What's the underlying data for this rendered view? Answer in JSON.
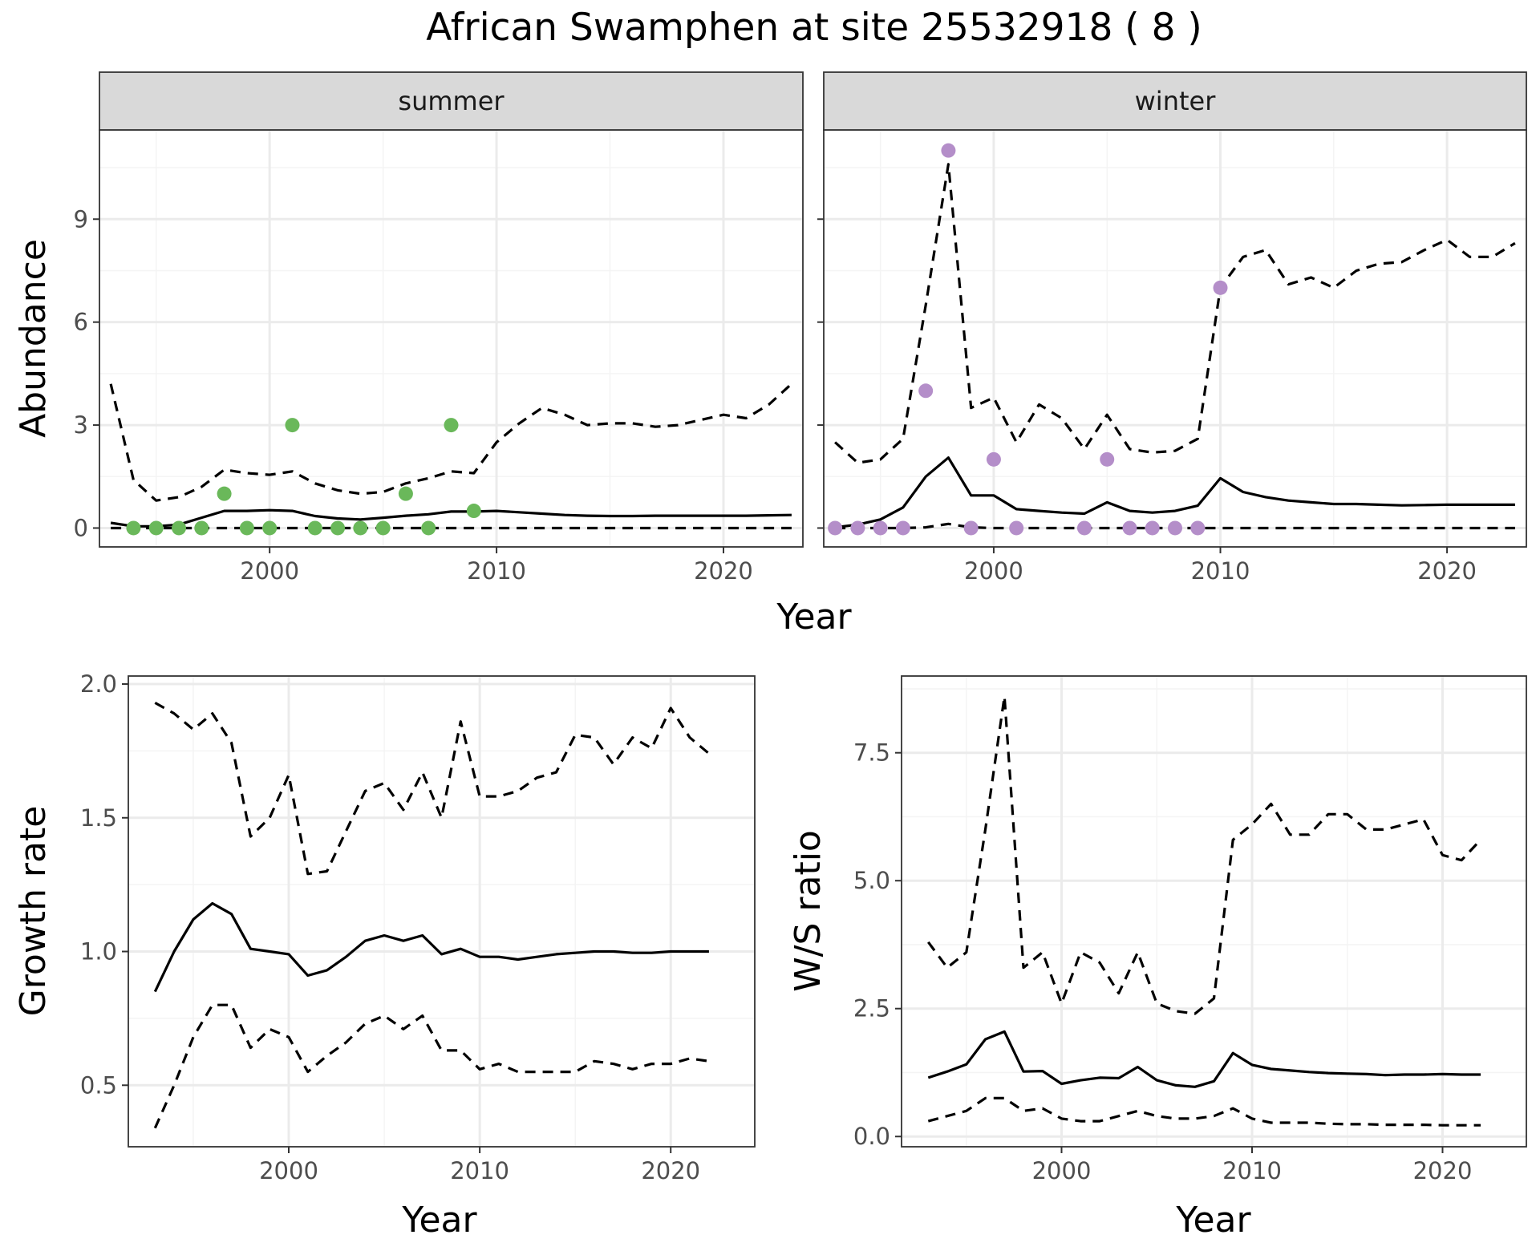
{
  "title": "African Swamphen at site 25532918 ( 8 )",
  "colors": {
    "summer_points": "#6ab85a",
    "winter_points": "#b48ec9",
    "line": "#000000",
    "strip_bg": "#d9d9d9",
    "grid_major": "#ebebeb",
    "grid_minor": "#f4f4f4"
  },
  "chart_data": [
    {
      "type": "line",
      "panel": "summer",
      "strip_label": "summer",
      "xlabel": "Year",
      "ylabel": "Abundance",
      "xlim": [
        1992.5,
        2023.5
      ],
      "ylim": [
        -0.55,
        11.6
      ],
      "xticks": [
        2000,
        2010,
        2020
      ],
      "yticks": [
        0,
        3,
        6,
        9
      ],
      "grid": true,
      "series": [
        {
          "style": "solid",
          "x": [
            1993,
            1994,
            1995,
            1996,
            1997,
            1998,
            1999,
            2000,
            2001,
            2002,
            2003,
            2004,
            2005,
            2006,
            2007,
            2008,
            2009,
            2010,
            2011,
            2012,
            2013,
            2014,
            2015,
            2016,
            2017,
            2018,
            2019,
            2020,
            2021,
            2022,
            2023
          ],
          "y": [
            0.15,
            0.05,
            0.05,
            0.1,
            0.3,
            0.5,
            0.5,
            0.52,
            0.5,
            0.35,
            0.28,
            0.25,
            0.3,
            0.36,
            0.4,
            0.48,
            0.48,
            0.5,
            0.46,
            0.42,
            0.38,
            0.36,
            0.35,
            0.35,
            0.36,
            0.36,
            0.36,
            0.36,
            0.36,
            0.37,
            0.38
          ]
        },
        {
          "style": "dashed",
          "x": [
            1993,
            1994,
            1995,
            1996,
            1997,
            1998,
            1999,
            2000,
            2001,
            2002,
            2003,
            2004,
            2005,
            2006,
            2007,
            2008,
            2009,
            2010,
            2011,
            2012,
            2013,
            2014,
            2015,
            2016,
            2017,
            2018,
            2019,
            2020,
            2021,
            2022,
            2023
          ],
          "y": [
            4.2,
            1.4,
            0.8,
            0.9,
            1.2,
            1.7,
            1.6,
            1.55,
            1.65,
            1.3,
            1.1,
            1.0,
            1.05,
            1.3,
            1.45,
            1.65,
            1.6,
            2.5,
            3.05,
            3.5,
            3.3,
            3.0,
            3.05,
            3.05,
            2.95,
            3.0,
            3.15,
            3.3,
            3.2,
            3.6,
            4.2
          ]
        },
        {
          "style": "dashed",
          "x": [
            1993,
            2023
          ],
          "y": [
            0,
            0
          ]
        }
      ],
      "points": {
        "x": [
          1994,
          1995,
          1996,
          1997,
          1998,
          1999,
          2000,
          2001,
          2002,
          2003,
          2004,
          2005,
          2006,
          2007,
          2008,
          2009
        ],
        "y": [
          0,
          0,
          0,
          0,
          1,
          0,
          0,
          3,
          0,
          0,
          0,
          0,
          1,
          0,
          3,
          0.5
        ]
      }
    },
    {
      "type": "line",
      "panel": "winter",
      "strip_label": "winter",
      "xlabel": "Year",
      "ylabel": "Abundance",
      "xlim": [
        1992.5,
        2023.5
      ],
      "ylim": [
        -0.55,
        11.6
      ],
      "xticks": [
        2000,
        2010,
        2020
      ],
      "yticks": [
        0,
        3,
        6,
        9
      ],
      "grid": true,
      "series": [
        {
          "style": "solid",
          "x": [
            1993,
            1994,
            1995,
            1996,
            1997,
            1998,
            1999,
            2000,
            2001,
            2002,
            2003,
            2004,
            2005,
            2006,
            2007,
            2008,
            2009,
            2010,
            2011,
            2012,
            2013,
            2014,
            2015,
            2016,
            2017,
            2018,
            2019,
            2020,
            2021,
            2022,
            2023
          ],
          "y": [
            0.02,
            0.1,
            0.25,
            0.6,
            1.5,
            2.05,
            0.95,
            0.95,
            0.55,
            0.5,
            0.45,
            0.42,
            0.75,
            0.5,
            0.45,
            0.5,
            0.65,
            1.45,
            1.05,
            0.9,
            0.8,
            0.75,
            0.7,
            0.7,
            0.68,
            0.66,
            0.67,
            0.68,
            0.68,
            0.68,
            0.68
          ]
        },
        {
          "style": "dashed",
          "x": [
            1993,
            1994,
            1995,
            1996,
            1997,
            1998,
            1999,
            2000,
            2001,
            2002,
            2003,
            2004,
            2005,
            2006,
            2007,
            2008,
            2009,
            2010,
            2011,
            2012,
            2013,
            2014,
            2015,
            2016,
            2017,
            2018,
            2019,
            2020,
            2021,
            2022,
            2023
          ],
          "y": [
            2.5,
            1.9,
            2.0,
            2.6,
            6.5,
            10.6,
            3.5,
            3.8,
            2.5,
            3.6,
            3.2,
            2.3,
            3.3,
            2.3,
            2.2,
            2.25,
            2.6,
            7.0,
            7.9,
            8.1,
            7.1,
            7.3,
            7.0,
            7.5,
            7.7,
            7.75,
            8.1,
            8.4,
            7.9,
            7.9,
            8.3
          ]
        },
        {
          "style": "dashed",
          "x": [
            1993,
            1994,
            1995,
            1996,
            1997,
            1998,
            1999,
            2000,
            2001,
            2002,
            2003,
            2004,
            2005,
            2006,
            2007,
            2008,
            2009,
            2010,
            2011,
            2012,
            2013,
            2014,
            2015,
            2016,
            2017,
            2018,
            2019,
            2020,
            2021,
            2022,
            2023
          ],
          "y": [
            0,
            0,
            0,
            0,
            0.02,
            0.12,
            0.02,
            0,
            0,
            0,
            0,
            0,
            0,
            0,
            0,
            0,
            0,
            0,
            0,
            0,
            0,
            0,
            0,
            0,
            0,
            0,
            0,
            0,
            0,
            0,
            0
          ]
        }
      ],
      "points": {
        "x": [
          1993,
          1994,
          1995,
          1996,
          1997,
          1998,
          1999,
          2000,
          2001,
          2004,
          2005,
          2006,
          2007,
          2008,
          2009,
          2010
        ],
        "y": [
          0,
          0,
          0,
          0,
          4,
          11,
          0,
          2,
          0,
          0,
          2,
          0,
          0,
          0,
          0,
          7
        ]
      }
    },
    {
      "type": "line",
      "panel": "growth",
      "xlabel": "Year",
      "ylabel": "Growth rate",
      "xlim": [
        1991.6,
        2024.4
      ],
      "ylim": [
        0.27,
        2.03
      ],
      "xticks": [
        2000,
        2010,
        2020
      ],
      "yticks": [
        0.5,
        1.0,
        1.5,
        2.0
      ],
      "ytick_labels": [
        "0.5",
        "1.0",
        "1.5",
        "2.0"
      ],
      "grid": true,
      "series": [
        {
          "style": "solid",
          "x": [
            1993,
            1994,
            1995,
            1996,
            1997,
            1998,
            1999,
            2000,
            2001,
            2002,
            2003,
            2004,
            2005,
            2006,
            2007,
            2008,
            2009,
            2010,
            2011,
            2012,
            2013,
            2014,
            2015,
            2016,
            2017,
            2018,
            2019,
            2020,
            2021,
            2022
          ],
          "y": [
            0.85,
            1.0,
            1.12,
            1.18,
            1.14,
            1.01,
            1.0,
            0.99,
            0.91,
            0.93,
            0.98,
            1.04,
            1.06,
            1.04,
            1.06,
            0.99,
            1.01,
            0.98,
            0.98,
            0.97,
            0.98,
            0.99,
            0.995,
            1.0,
            1.0,
            0.995,
            0.995,
            1.0,
            1.0,
            1.0
          ]
        },
        {
          "style": "dashed",
          "x": [
            1993,
            1994,
            1995,
            1996,
            1997,
            1998,
            1999,
            2000,
            2001,
            2002,
            2003,
            2004,
            2005,
            2006,
            2007,
            2008,
            2009,
            2010,
            2011,
            2012,
            2013,
            2014,
            2015,
            2016,
            2017,
            2018,
            2019,
            2020,
            2021,
            2022
          ],
          "y": [
            1.93,
            1.89,
            1.83,
            1.89,
            1.78,
            1.43,
            1.5,
            1.66,
            1.29,
            1.3,
            1.45,
            1.6,
            1.63,
            1.53,
            1.67,
            1.5,
            1.86,
            1.58,
            1.58,
            1.6,
            1.65,
            1.67,
            1.81,
            1.8,
            1.7,
            1.8,
            1.76,
            1.91,
            1.8,
            1.74
          ]
        },
        {
          "style": "dashed",
          "x": [
            1993,
            1994,
            1995,
            1996,
            1997,
            1998,
            1999,
            2000,
            2001,
            2002,
            2003,
            2004,
            2005,
            2006,
            2007,
            2008,
            2009,
            2010,
            2011,
            2012,
            2013,
            2014,
            2015,
            2016,
            2017,
            2018,
            2019,
            2020,
            2021,
            2022
          ],
          "y": [
            0.34,
            0.5,
            0.68,
            0.8,
            0.8,
            0.64,
            0.71,
            0.68,
            0.55,
            0.61,
            0.66,
            0.73,
            0.76,
            0.71,
            0.76,
            0.63,
            0.63,
            0.56,
            0.58,
            0.55,
            0.55,
            0.55,
            0.55,
            0.59,
            0.58,
            0.56,
            0.58,
            0.58,
            0.6,
            0.59
          ]
        }
      ]
    },
    {
      "type": "line",
      "panel": "ws_ratio",
      "xlabel": "Year",
      "ylabel": "W/S ratio",
      "xlim": [
        1991.6,
        2024.4
      ],
      "ylim": [
        -0.2,
        9.0
      ],
      "xticks": [
        2000,
        2010,
        2020
      ],
      "yticks": [
        0,
        2.5,
        5.0,
        7.5
      ],
      "ytick_labels": [
        "0.0",
        "2.5",
        "5.0",
        "7.5"
      ],
      "grid": true,
      "series": [
        {
          "style": "solid",
          "x": [
            1993,
            1994,
            1995,
            1996,
            1997,
            1998,
            1999,
            2000,
            2001,
            2002,
            2003,
            2004,
            2005,
            2006,
            2007,
            2008,
            2009,
            2010,
            2011,
            2012,
            2013,
            2014,
            2015,
            2016,
            2017,
            2018,
            2019,
            2020,
            2021,
            2022
          ],
          "y": [
            1.15,
            1.27,
            1.41,
            1.9,
            2.05,
            1.27,
            1.28,
            1.03,
            1.1,
            1.15,
            1.14,
            1.36,
            1.1,
            1.0,
            0.97,
            1.08,
            1.63,
            1.4,
            1.32,
            1.29,
            1.26,
            1.24,
            1.23,
            1.22,
            1.2,
            1.21,
            1.21,
            1.22,
            1.21,
            1.21
          ]
        },
        {
          "style": "dashed",
          "x": [
            1993,
            1994,
            1995,
            1996,
            1997,
            1998,
            1999,
            2000,
            2001,
            2002,
            2003,
            2004,
            2005,
            2006,
            2007,
            2008,
            2009,
            2010,
            2011,
            2012,
            2013,
            2014,
            2015,
            2016,
            2017,
            2018,
            2019,
            2020,
            2021,
            2022
          ],
          "y": [
            3.8,
            3.3,
            3.6,
            6.0,
            8.6,
            3.3,
            3.6,
            2.6,
            3.6,
            3.4,
            2.8,
            3.6,
            2.6,
            2.45,
            2.4,
            2.7,
            5.8,
            6.1,
            6.5,
            5.9,
            5.9,
            6.3,
            6.3,
            6.0,
            6.0,
            6.1,
            6.2,
            5.5,
            5.4,
            5.8
          ]
        },
        {
          "style": "dashed",
          "x": [
            1993,
            1994,
            1995,
            1996,
            1997,
            1998,
            1999,
            2000,
            2001,
            2002,
            2003,
            2004,
            2005,
            2006,
            2007,
            2008,
            2009,
            2010,
            2011,
            2012,
            2013,
            2014,
            2015,
            2016,
            2017,
            2018,
            2019,
            2020,
            2021,
            2022
          ],
          "y": [
            0.3,
            0.4,
            0.5,
            0.75,
            0.75,
            0.5,
            0.55,
            0.35,
            0.3,
            0.3,
            0.4,
            0.5,
            0.4,
            0.35,
            0.35,
            0.4,
            0.55,
            0.35,
            0.27,
            0.27,
            0.27,
            0.25,
            0.24,
            0.24,
            0.23,
            0.23,
            0.23,
            0.22,
            0.22,
            0.22
          ]
        }
      ]
    }
  ]
}
